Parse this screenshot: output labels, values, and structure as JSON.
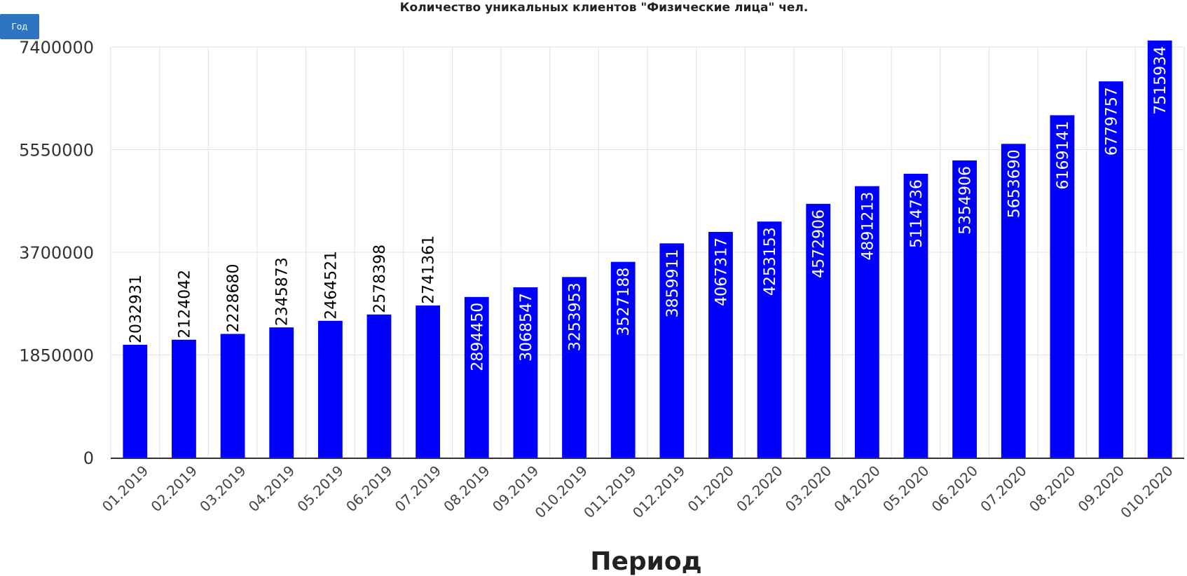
{
  "controls": {
    "year_button": "Год"
  },
  "chart_data": {
    "type": "bar",
    "title": "Количество уникальных клиентов \"Физические лица\" чел.",
    "xlabel": "Период",
    "ylabel": "",
    "ylim": [
      0,
      7400000
    ],
    "yticks": [
      0,
      1850000,
      3700000,
      5550000,
      7400000
    ],
    "grid": true,
    "bar_color": "#0000ff",
    "categories": [
      "01.2019",
      "02.2019",
      "03.2019",
      "04.2019",
      "05.2019",
      "06.2019",
      "07.2019",
      "08.2019",
      "09.2019",
      "010.2019",
      "011.2019",
      "012.2019",
      "01.2020",
      "02.2020",
      "03.2020",
      "04.2020",
      "05.2020",
      "06.2020",
      "07.2020",
      "08.2020",
      "09.2020",
      "010.2020"
    ],
    "values": [
      2032931,
      2124042,
      2228680,
      2345873,
      2464521,
      2578398,
      2741361,
      2894450,
      3068547,
      3253953,
      3527188,
      3859911,
      4067317,
      4253153,
      4572906,
      4891213,
      5114736,
      5354906,
      5653690,
      6169141,
      6779757,
      7515934
    ]
  }
}
